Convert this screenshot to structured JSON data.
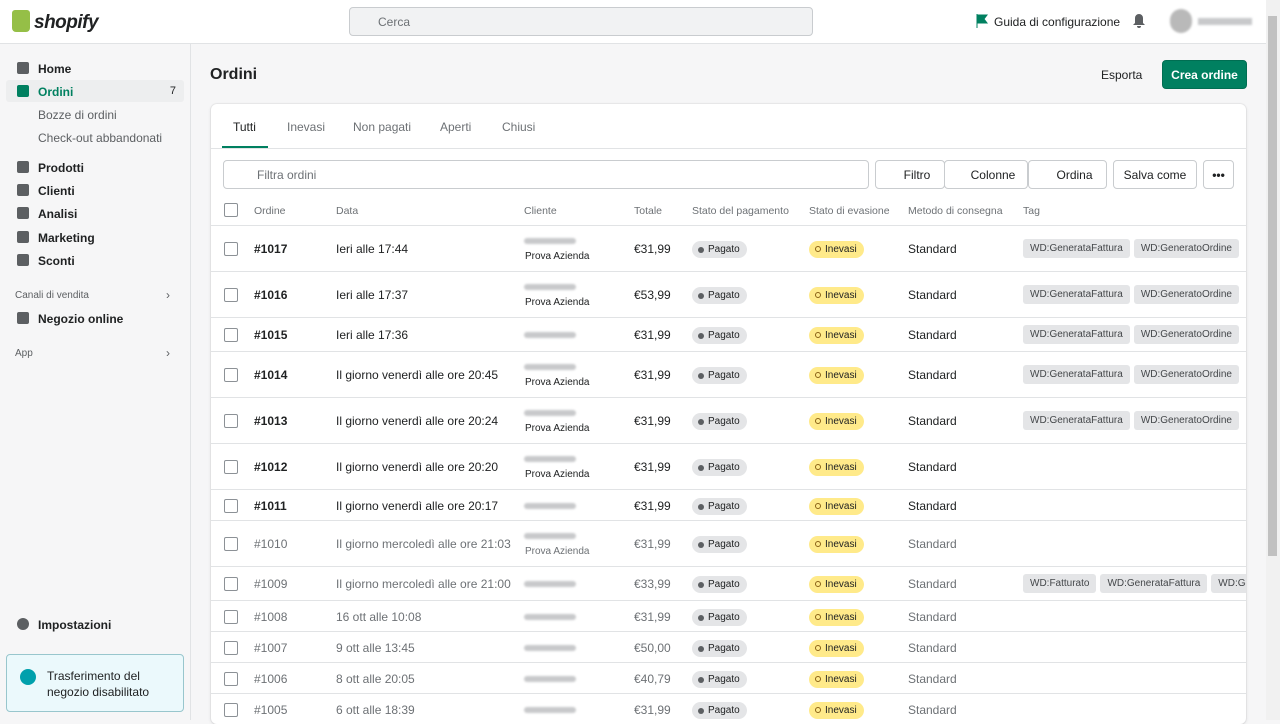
{
  "header": {
    "logo": "shopify",
    "search_placeholder": "Cerca",
    "setup_guide": "Guida di configurazione"
  },
  "sidebar": {
    "nav": [
      {
        "label": "Home"
      },
      {
        "label": "Ordini",
        "badge": "7"
      },
      {
        "label": "Bozze di ordini"
      },
      {
        "label": "Check-out abbandonati"
      },
      {
        "label": "Prodotti"
      },
      {
        "label": "Clienti"
      },
      {
        "label": "Analisi"
      },
      {
        "label": "Marketing"
      },
      {
        "label": "Sconti"
      }
    ],
    "sales_channels": "Canali di vendita",
    "online_store": "Negozio online",
    "apps": "App",
    "settings": "Impostazioni",
    "notice": "Trasferimento del negozio disabilitato"
  },
  "page": {
    "title": "Ordini",
    "export": "Esporta",
    "create": "Crea ordine",
    "tabs": [
      "Tutti",
      "Inevasi",
      "Non pagati",
      "Aperti",
      "Chiusi"
    ],
    "filter_placeholder": "Filtra ordini",
    "buttons": [
      "Filtro",
      "Colonne",
      "Ordina",
      "Salva come"
    ],
    "columns": [
      "Ordine",
      "Data",
      "Cliente",
      "Totale",
      "Stato del pagamento",
      "Stato di evasione",
      "Metodo di consegna",
      "Tag"
    ]
  },
  "table": {
    "rows": [
      {
        "order": "#1017",
        "date": "Ieri alle 17:44",
        "company": "Prova Azienda",
        "total": "€31,99",
        "payment": "Pagato",
        "fulfillment": "Inevasi",
        "delivery": "Standard",
        "tags": [
          "WD:GenerataFattura",
          "WD:GeneratoOrdine"
        ]
      },
      {
        "order": "#1016",
        "date": "Ieri alle 17:37",
        "company": "Prova Azienda",
        "total": "€53,99",
        "payment": "Pagato",
        "fulfillment": "Inevasi",
        "delivery": "Standard",
        "tags": [
          "WD:GenerataFattura",
          "WD:GeneratoOrdine"
        ]
      },
      {
        "order": "#1015",
        "date": "Ieri alle 17:36",
        "total": "€31,99",
        "payment": "Pagato",
        "fulfillment": "Inevasi",
        "delivery": "Standard",
        "tags": [
          "WD:GenerataFattura",
          "WD:GeneratoOrdine"
        ]
      },
      {
        "order": "#1014",
        "date": "Il giorno venerdì alle ore 20:45",
        "company": "Prova Azienda",
        "total": "€31,99",
        "payment": "Pagato",
        "fulfillment": "Inevasi",
        "delivery": "Standard",
        "tags": [
          "WD:GenerataFattura",
          "WD:GeneratoOrdine"
        ]
      },
      {
        "order": "#1013",
        "date": "Il giorno venerdì alle ore 20:24",
        "company": "Prova Azienda",
        "total": "€31,99",
        "payment": "Pagato",
        "fulfillment": "Inevasi",
        "delivery": "Standard",
        "tags": [
          "WD:GenerataFattura",
          "WD:GeneratoOrdine"
        ]
      },
      {
        "order": "#1012",
        "date": "Il giorno venerdì alle ore 20:20",
        "company": "Prova Azienda",
        "total": "€31,99",
        "payment": "Pagato",
        "fulfillment": "Inevasi",
        "delivery": "Standard",
        "tags": []
      },
      {
        "order": "#1011",
        "date": "Il giorno venerdì alle ore 20:17",
        "total": "€31,99",
        "payment": "Pagato",
        "fulfillment": "Inevasi",
        "delivery": "Standard",
        "tags": []
      },
      {
        "order": "#1010",
        "date": "Il giorno mercoledì alle ore 21:03",
        "company": "Prova Azienda",
        "total": "€31,99",
        "payment": "Pagato",
        "fulfillment": "Inevasi",
        "delivery": "Standard",
        "tags": []
      },
      {
        "order": "#1009",
        "date": "Il giorno mercoledì alle ore 21:00",
        "total": "€33,99",
        "payment": "Pagato",
        "fulfillment": "Inevasi",
        "delivery": "Standard",
        "tags": [
          "WD:Fatturato",
          "WD:GenerataFattura",
          "WD:GeneratoOrdine"
        ]
      },
      {
        "order": "#1008",
        "date": "16 ott alle 10:08",
        "total": "€31,99",
        "payment": "Pagato",
        "fulfillment": "Inevasi",
        "delivery": "Standard",
        "tags": []
      },
      {
        "order": "#1007",
        "date": "9 ott alle 13:45",
        "total": "€50,00",
        "payment": "Pagato",
        "fulfillment": "Inevasi",
        "delivery": "Standard",
        "tags": []
      },
      {
        "order": "#1006",
        "date": "8 ott alle 20:05",
        "total": "€40,79",
        "payment": "Pagato",
        "fulfillment": "Inevasi",
        "delivery": "Standard",
        "tags": []
      },
      {
        "order": "#1005",
        "date": "6 ott alle 18:39",
        "total": "€31,99",
        "payment": "Pagato",
        "fulfillment": "Inevasi",
        "delivery": "Standard",
        "tags": []
      }
    ]
  }
}
